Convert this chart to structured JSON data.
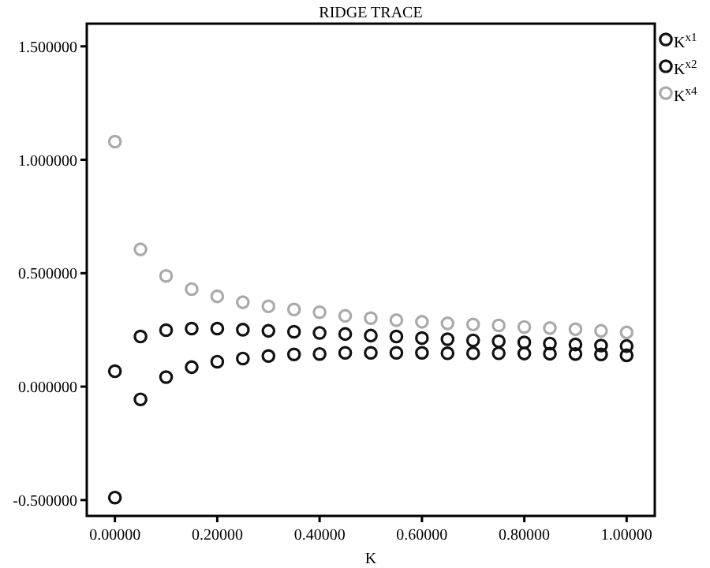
{
  "chart_data": {
    "type": "scatter",
    "title": "RIDGE TRACE",
    "xlabel": "K",
    "marker": "circle",
    "legend": "top right",
    "grid": false,
    "x": [
      0,
      0.05,
      0.1,
      0.15,
      0.2,
      0.25,
      0.3,
      0.35,
      0.4,
      0.45,
      0.5,
      0.55,
      0.6,
      0.65,
      0.7,
      0.75,
      0.8,
      0.85,
      0.9,
      0.95,
      1.0
    ],
    "series": [
      {
        "name": "K$^{x1}$",
        "color": "#111111",
        "values": [
          -0.489,
          -0.056,
          0.042,
          0.086,
          0.11,
          0.124,
          0.135,
          0.142,
          0.144,
          0.149,
          0.149,
          0.149,
          0.149,
          0.147,
          0.147,
          0.147,
          0.146,
          0.145,
          0.144,
          0.142,
          0.138
        ]
      },
      {
        "name": "K$^{x2}$",
        "color": "#111111",
        "values": [
          0.068,
          0.221,
          0.249,
          0.256,
          0.256,
          0.251,
          0.246,
          0.242,
          0.237,
          0.232,
          0.225,
          0.221,
          0.214,
          0.209,
          0.204,
          0.2,
          0.195,
          0.19,
          0.186,
          0.181,
          0.179
        ]
      },
      {
        "name": "K$^{x4}$",
        "color": "#aaaaaa",
        "values": [
          1.08,
          0.605,
          0.488,
          0.43,
          0.398,
          0.372,
          0.354,
          0.34,
          0.328,
          0.312,
          0.302,
          0.293,
          0.286,
          0.279,
          0.274,
          0.27,
          0.263,
          0.258,
          0.253,
          0.246,
          0.239
        ]
      }
    ],
    "xlim": [
      -0.055,
      1.055
    ],
    "ylim": [
      -0.57,
      1.6
    ],
    "xticks": [
      {
        "value": 0,
        "label": "0.00000"
      },
      {
        "value": 0.2,
        "label": "0.20000"
      },
      {
        "value": 0.4,
        "label": "0.40000"
      },
      {
        "value": 0.6,
        "label": "0.60000"
      },
      {
        "value": 0.8,
        "label": "0.80000"
      },
      {
        "value": 1,
        "label": "1.00000"
      }
    ],
    "yticks": [
      {
        "value": -0.5,
        "label": "-0.500000"
      },
      {
        "value": 0,
        "label": "0.000000"
      },
      {
        "value": 0.5,
        "label": "0.500000"
      },
      {
        "value": 1,
        "label": "1.000000"
      },
      {
        "value": 1.5,
        "label": "1.500000"
      }
    ]
  }
}
